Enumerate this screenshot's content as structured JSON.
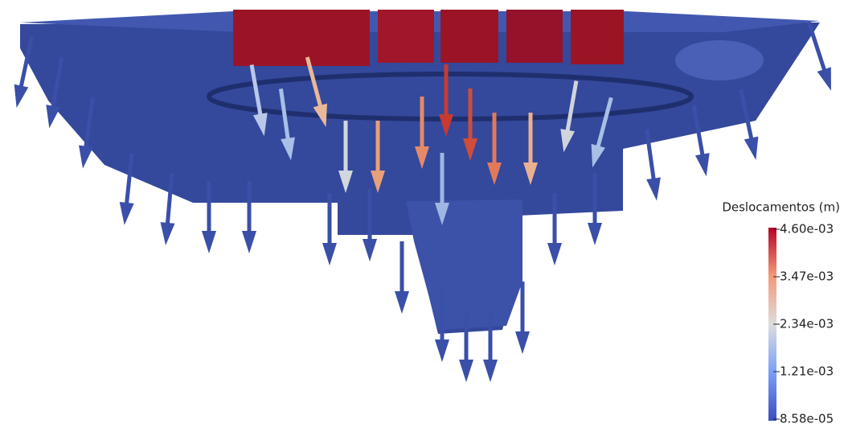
{
  "legend": {
    "title": "Deslocamentos (m)",
    "ticks": [
      "4.60e-03",
      "3.47e-03",
      "2.34e-03",
      "1.21e-03",
      "8.58e-05"
    ]
  }
}
